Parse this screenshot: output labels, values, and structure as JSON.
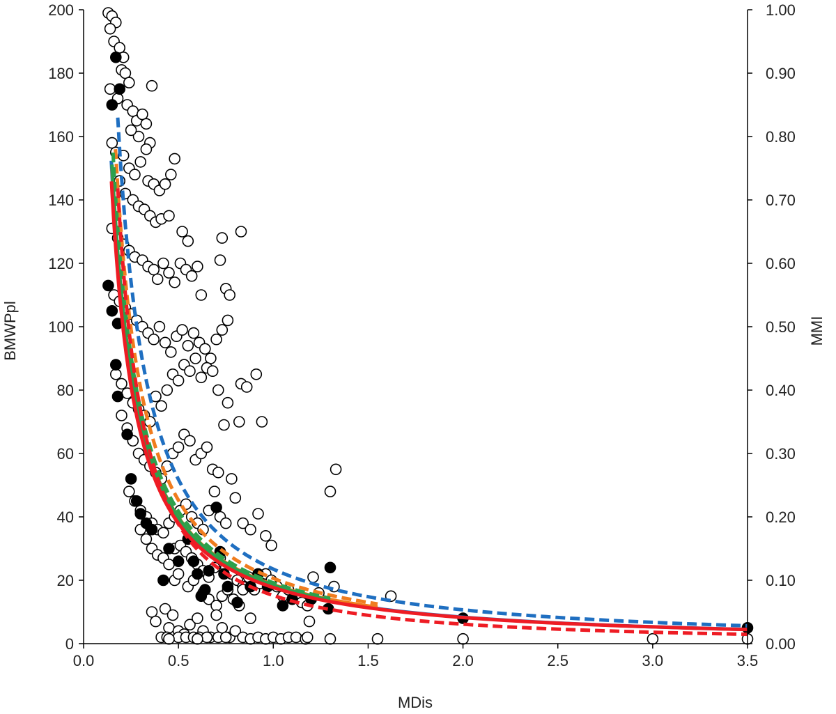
{
  "chart_data": {
    "type": "scatter",
    "title": "",
    "xlabel": "MDis",
    "ylabel": "BMWPpl",
    "y2label": "MMI",
    "xlim": [
      0,
      3.5
    ],
    "ylim": [
      0,
      200
    ],
    "y2lim": [
      0,
      1
    ],
    "x_ticks": [
      "0.0",
      "0.5",
      "1.0",
      "1.5",
      "2.0",
      "2.5",
      "3.0",
      "3.5"
    ],
    "y_ticks": [
      "0",
      "20",
      "40",
      "60",
      "80",
      "100",
      "120",
      "140",
      "160",
      "180",
      "200"
    ],
    "y2_ticks": [
      "0.00",
      "0.10",
      "0.20",
      "0.30",
      "0.40",
      "0.50",
      "0.60",
      "0.70",
      "0.80",
      "0.90",
      "1.00"
    ],
    "grid": false,
    "colors": {
      "blue": "#1f6fc1",
      "orange": "#f07c1e",
      "green": "#2ca04c",
      "red": "#ee1c24",
      "axis": "#000000",
      "marker_edge": "#000000"
    },
    "series": [
      {
        "marker": "open-circle",
        "points": [
          [
            0.13,
            199
          ],
          [
            0.15,
            198
          ],
          [
            0.17,
            196
          ],
          [
            0.14,
            194
          ],
          [
            0.16,
            190
          ],
          [
            0.19,
            188
          ],
          [
            0.21,
            185
          ],
          [
            0.2,
            181
          ],
          [
            0.22,
            180
          ],
          [
            0.24,
            177
          ],
          [
            0.14,
            175
          ],
          [
            0.18,
            172
          ],
          [
            0.23,
            170
          ],
          [
            0.26,
            168
          ],
          [
            0.28,
            165
          ],
          [
            0.31,
            167
          ],
          [
            0.33,
            164
          ],
          [
            0.35,
            158
          ],
          [
            0.29,
            160
          ],
          [
            0.25,
            162
          ],
          [
            0.15,
            158
          ],
          [
            0.17,
            155
          ],
          [
            0.21,
            154
          ],
          [
            0.24,
            150
          ],
          [
            0.27,
            148
          ],
          [
            0.3,
            152
          ],
          [
            0.34,
            146
          ],
          [
            0.37,
            145
          ],
          [
            0.4,
            143
          ],
          [
            0.43,
            145
          ],
          [
            0.46,
            148
          ],
          [
            0.48,
            153
          ],
          [
            0.36,
            176
          ],
          [
            0.33,
            156
          ],
          [
            0.19,
            146
          ],
          [
            0.22,
            142
          ],
          [
            0.26,
            140
          ],
          [
            0.29,
            138
          ],
          [
            0.32,
            137
          ],
          [
            0.35,
            135
          ],
          [
            0.38,
            133
          ],
          [
            0.41,
            134
          ],
          [
            0.45,
            135
          ],
          [
            0.52,
            130
          ],
          [
            0.15,
            131
          ],
          [
            0.18,
            128
          ],
          [
            0.21,
            126
          ],
          [
            0.24,
            124
          ],
          [
            0.27,
            122
          ],
          [
            0.31,
            121
          ],
          [
            0.34,
            119
          ],
          [
            0.37,
            118
          ],
          [
            0.39,
            115
          ],
          [
            0.42,
            120
          ],
          [
            0.45,
            117
          ],
          [
            0.48,
            114
          ],
          [
            0.51,
            120
          ],
          [
            0.54,
            118
          ],
          [
            0.57,
            116
          ],
          [
            0.6,
            119
          ],
          [
            0.62,
            110
          ],
          [
            0.55,
            127
          ],
          [
            0.73,
            128
          ],
          [
            0.72,
            121
          ],
          [
            0.83,
            130
          ],
          [
            0.75,
            112
          ],
          [
            0.77,
            110
          ],
          [
            0.16,
            110
          ],
          [
            0.19,
            108
          ],
          [
            0.22,
            106
          ],
          [
            0.25,
            104
          ],
          [
            0.28,
            102
          ],
          [
            0.31,
            100
          ],
          [
            0.34,
            98
          ],
          [
            0.37,
            96
          ],
          [
            0.4,
            100
          ],
          [
            0.43,
            95
          ],
          [
            0.46,
            92
          ],
          [
            0.49,
            97
          ],
          [
            0.52,
            99
          ],
          [
            0.55,
            94
          ],
          [
            0.58,
            98
          ],
          [
            0.61,
            95
          ],
          [
            0.64,
            93
          ],
          [
            0.67,
            90
          ],
          [
            0.7,
            96
          ],
          [
            0.73,
            99
          ],
          [
            0.76,
            102
          ],
          [
            0.17,
            85
          ],
          [
            0.2,
            82
          ],
          [
            0.23,
            79
          ],
          [
            0.26,
            76
          ],
          [
            0.29,
            74
          ],
          [
            0.32,
            72
          ],
          [
            0.35,
            70
          ],
          [
            0.38,
            78
          ],
          [
            0.41,
            75
          ],
          [
            0.44,
            80
          ],
          [
            0.47,
            85
          ],
          [
            0.5,
            83
          ],
          [
            0.53,
            88
          ],
          [
            0.56,
            86
          ],
          [
            0.59,
            90
          ],
          [
            0.62,
            84
          ],
          [
            0.65,
            87
          ],
          [
            0.68,
            86
          ],
          [
            0.71,
            80
          ],
          [
            0.74,
            69
          ],
          [
            0.76,
            76
          ],
          [
            0.82,
            70
          ],
          [
            0.83,
            82
          ],
          [
            0.86,
            81
          ],
          [
            0.91,
            85
          ],
          [
            0.94,
            70
          ],
          [
            0.2,
            72
          ],
          [
            0.23,
            68
          ],
          [
            0.26,
            64
          ],
          [
            0.29,
            60
          ],
          [
            0.32,
            58
          ],
          [
            0.35,
            56
          ],
          [
            0.38,
            54
          ],
          [
            0.41,
            52
          ],
          [
            0.44,
            56
          ],
          [
            0.47,
            60
          ],
          [
            0.5,
            62
          ],
          [
            0.53,
            66
          ],
          [
            0.56,
            64
          ],
          [
            0.59,
            58
          ],
          [
            0.62,
            60
          ],
          [
            0.65,
            62
          ],
          [
            0.68,
            55
          ],
          [
            0.71,
            54
          ],
          [
            0.24,
            48
          ],
          [
            0.27,
            45
          ],
          [
            0.3,
            42
          ],
          [
            0.33,
            40
          ],
          [
            0.36,
            38
          ],
          [
            0.39,
            36
          ],
          [
            0.42,
            35
          ],
          [
            0.45,
            38
          ],
          [
            0.48,
            40
          ],
          [
            0.51,
            42
          ],
          [
            0.54,
            44
          ],
          [
            0.57,
            40
          ],
          [
            0.6,
            38
          ],
          [
            0.63,
            36
          ],
          [
            0.66,
            42
          ],
          [
            0.69,
            48
          ],
          [
            0.72,
            40
          ],
          [
            0.75,
            38
          ],
          [
            0.78,
            52
          ],
          [
            0.8,
            46
          ],
          [
            0.84,
            38
          ],
          [
            0.88,
            36
          ],
          [
            0.92,
            41
          ],
          [
            0.96,
            34
          ],
          [
            0.99,
            31
          ],
          [
            0.3,
            36
          ],
          [
            0.33,
            33
          ],
          [
            0.36,
            30
          ],
          [
            0.39,
            28
          ],
          [
            0.42,
            27
          ],
          [
            0.45,
            25
          ],
          [
            0.48,
            30
          ],
          [
            0.51,
            31
          ],
          [
            0.54,
            29
          ],
          [
            0.57,
            27
          ],
          [
            0.6,
            25
          ],
          [
            0.63,
            23
          ],
          [
            0.66,
            21
          ],
          [
            0.69,
            24
          ],
          [
            0.72,
            27
          ],
          [
            0.75,
            24
          ],
          [
            0.78,
            22
          ],
          [
            0.81,
            20
          ],
          [
            0.84,
            18
          ],
          [
            0.87,
            21
          ],
          [
            0.9,
            17
          ],
          [
            0.93,
            19
          ],
          [
            0.96,
            22
          ],
          [
            0.99,
            20
          ],
          [
            1.02,
            18
          ],
          [
            1.05,
            15
          ],
          [
            1.08,
            17
          ],
          [
            1.12,
            15
          ],
          [
            1.15,
            13
          ],
          [
            1.18,
            12
          ],
          [
            1.21,
            21
          ],
          [
            1.24,
            16
          ],
          [
            1.3,
            48
          ],
          [
            1.33,
            55
          ],
          [
            1.32,
            18
          ],
          [
            1.62,
            15
          ],
          [
            0.48,
            20
          ],
          [
            0.5,
            22
          ],
          [
            0.55,
            18
          ],
          [
            0.58,
            20
          ],
          [
            0.63,
            16
          ],
          [
            0.66,
            14
          ],
          [
            0.7,
            12
          ],
          [
            0.73,
            15
          ],
          [
            0.76,
            17
          ],
          [
            0.79,
            14
          ],
          [
            0.82,
            12
          ],
          [
            0.84,
            17
          ],
          [
            0.88,
            8
          ],
          [
            0.36,
            10
          ],
          [
            0.38,
            7
          ],
          [
            0.43,
            11
          ],
          [
            0.45,
            5
          ],
          [
            0.47,
            9
          ],
          [
            0.5,
            4
          ],
          [
            0.53,
            3
          ],
          [
            0.56,
            6
          ],
          [
            0.6,
            8
          ],
          [
            0.63,
            4
          ],
          [
            0.67,
            2
          ],
          [
            0.7,
            9
          ],
          [
            0.73,
            5
          ],
          [
            0.77,
            2
          ],
          [
            0.8,
            4
          ],
          [
            0.84,
            2
          ],
          [
            0.88,
            1.5
          ],
          [
            0.92,
            2
          ],
          [
            0.96,
            1.5
          ],
          [
            1.0,
            2
          ],
          [
            1.04,
            1.5
          ],
          [
            1.08,
            2
          ],
          [
            1.12,
            2
          ],
          [
            1.17,
            1.5
          ],
          [
            1.19,
            7
          ],
          [
            1.18,
            2
          ],
          [
            1.3,
            1.5
          ],
          [
            1.55,
            1.5
          ],
          [
            2.0,
            1.5
          ],
          [
            3.0,
            1.5
          ],
          [
            3.5,
            1.5
          ],
          [
            0.41,
            2
          ],
          [
            0.44,
            2
          ],
          [
            0.5,
            2
          ],
          [
            0.54,
            2
          ],
          [
            0.58,
            2
          ],
          [
            0.61,
            2
          ],
          [
            0.65,
            2
          ],
          [
            0.71,
            2
          ],
          [
            0.75,
            2
          ],
          [
            0.45,
            1.5
          ],
          [
            0.6,
            1.5
          ]
        ]
      },
      {
        "marker": "filled-circle",
        "points": [
          [
            0.13,
            113
          ],
          [
            0.15,
            105
          ],
          [
            0.18,
            101
          ],
          [
            0.17,
            88
          ],
          [
            0.18,
            78
          ],
          [
            0.25,
            52
          ],
          [
            0.3,
            41
          ],
          [
            0.36,
            36
          ],
          [
            0.42,
            20
          ],
          [
            0.45,
            30
          ],
          [
            0.5,
            26
          ],
          [
            0.55,
            33
          ],
          [
            0.58,
            26
          ],
          [
            0.6,
            22
          ],
          [
            0.62,
            15
          ],
          [
            0.64,
            17
          ],
          [
            0.66,
            23
          ],
          [
            0.7,
            43
          ],
          [
            0.72,
            29
          ],
          [
            0.74,
            22
          ],
          [
            0.76,
            18
          ],
          [
            0.81,
            13
          ],
          [
            0.88,
            18
          ],
          [
            0.92,
            22
          ],
          [
            0.97,
            18
          ],
          [
            1.05,
            12
          ],
          [
            1.1,
            14
          ],
          [
            1.3,
            24
          ],
          [
            1.29,
            11
          ],
          [
            1.2,
            14
          ],
          [
            2.0,
            8
          ],
          [
            3.5,
            5
          ],
          [
            0.15,
            170
          ],
          [
            0.17,
            185
          ],
          [
            0.19,
            175
          ],
          [
            0.23,
            66
          ],
          [
            0.28,
            45
          ],
          [
            0.33,
            38
          ]
        ]
      }
    ],
    "fits": [
      {
        "color": "#1f6fc1",
        "dash": true,
        "a": 23.5,
        "b": 1.14,
        "x_range": [
          0.18,
          3.5
        ]
      },
      {
        "color": "#1f6fc1",
        "dash": false,
        "a": 18.0,
        "b": 1.11,
        "x_range": [
          0.146,
          3.5
        ]
      },
      {
        "color": "#f07c1e",
        "dash": true,
        "a": 20.6,
        "b": 1.135,
        "x_range": [
          0.168,
          1.55
        ]
      },
      {
        "color": "#f07c1e",
        "dash": false,
        "a": 18.6,
        "b": 1.1,
        "x_range": [
          0.15,
          1.55
        ]
      },
      {
        "color": "#2ca04c",
        "dash": true,
        "a": 19.2,
        "b": 1.12,
        "x_range": [
          0.155,
          1.3
        ]
      },
      {
        "color": "#2ca04c",
        "dash": false,
        "a": 18.4,
        "b": 1.11,
        "x_range": [
          0.15,
          1.3
        ]
      },
      {
        "color": "#ee1c24",
        "dash": false,
        "a": 17.7,
        "b": 1.1,
        "x_range": [
          0.147,
          3.5
        ]
      },
      {
        "color": "#ee1c24",
        "dash": true,
        "a": 15.2,
        "b": 1.31,
        "x_range": [
          0.18,
          3.5
        ]
      }
    ]
  }
}
